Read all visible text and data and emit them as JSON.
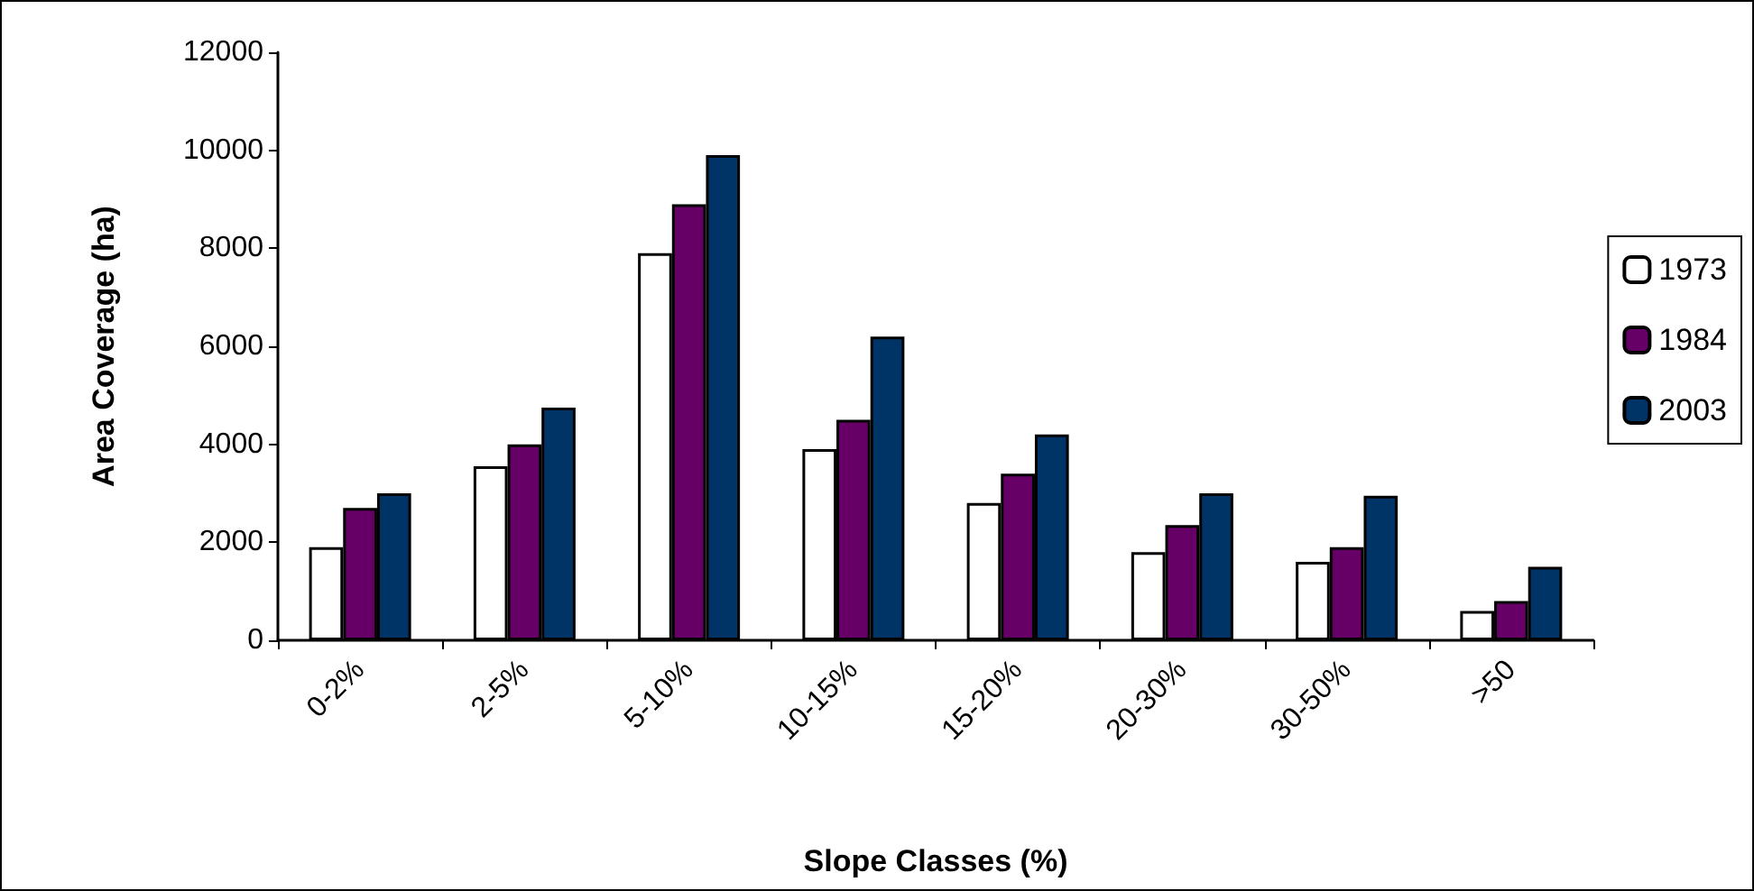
{
  "chart_data": {
    "type": "bar",
    "xlabel": "Slope Classes (%)",
    "ylabel": "Area Coverage (ha)",
    "categories": [
      "0-2%",
      "2-5%",
      "5-10%",
      "10-15%",
      "15-20%",
      "20-30%",
      "30-50%",
      ">50"
    ],
    "series": [
      {
        "name": "1973",
        "color": "#ffffff",
        "values": [
          1900,
          3550,
          7900,
          3900,
          2800,
          1800,
          1600,
          600
        ]
      },
      {
        "name": "1984",
        "color": "#660066",
        "values": [
          2700,
          4000,
          8900,
          4500,
          3400,
          2350,
          1900,
          800
        ]
      },
      {
        "name": "2003",
        "color": "#003366",
        "values": [
          3000,
          4750,
          9900,
          6200,
          4200,
          3000,
          2950,
          1500
        ]
      }
    ],
    "ylim": [
      0,
      12000
    ],
    "yticks": [
      0,
      2000,
      4000,
      6000,
      8000,
      10000,
      12000
    ],
    "grid": false,
    "legend": "right"
  }
}
